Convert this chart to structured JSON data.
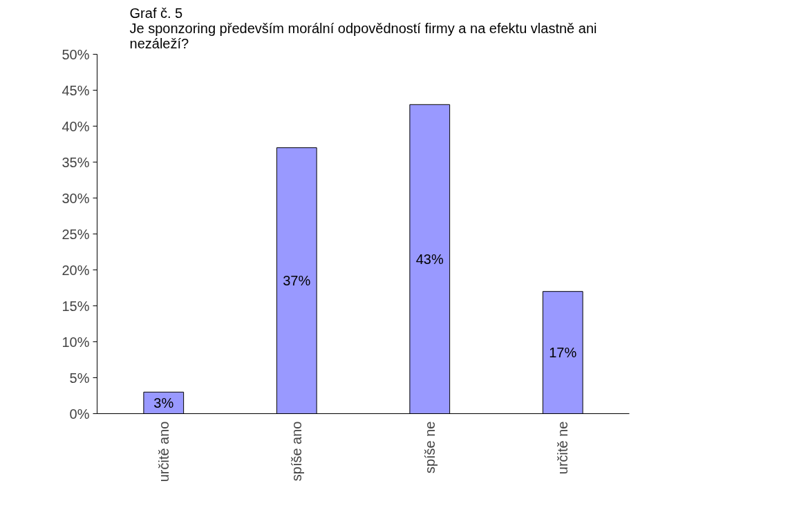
{
  "chart_data": {
    "type": "bar",
    "title": "Graf č. 5\nJe sponzoring především morální odpovědností firmy a na efektu vlastně ani\nnezáleží?",
    "categories": [
      "určitě ano",
      "spíše ano",
      "spíše ne",
      "určitě ne"
    ],
    "values": [
      3,
      37,
      43,
      17
    ],
    "value_labels": [
      "3%",
      "37%",
      "43%",
      "17%"
    ],
    "color": "#9999ff",
    "ylim": [
      0,
      50
    ],
    "yticks": [
      {
        "value": 0,
        "label": "0%"
      },
      {
        "value": 5,
        "label": "5%"
      },
      {
        "value": 10,
        "label": "10%"
      },
      {
        "value": 15,
        "label": "15%"
      },
      {
        "value": 20,
        "label": "20%"
      },
      {
        "value": 25,
        "label": "25%"
      },
      {
        "value": 30,
        "label": "30%"
      },
      {
        "value": 35,
        "label": "35%"
      },
      {
        "value": 40,
        "label": "40%"
      },
      {
        "value": 45,
        "label": "45%"
      },
      {
        "value": 50,
        "label": "50%"
      }
    ],
    "grid": false
  }
}
